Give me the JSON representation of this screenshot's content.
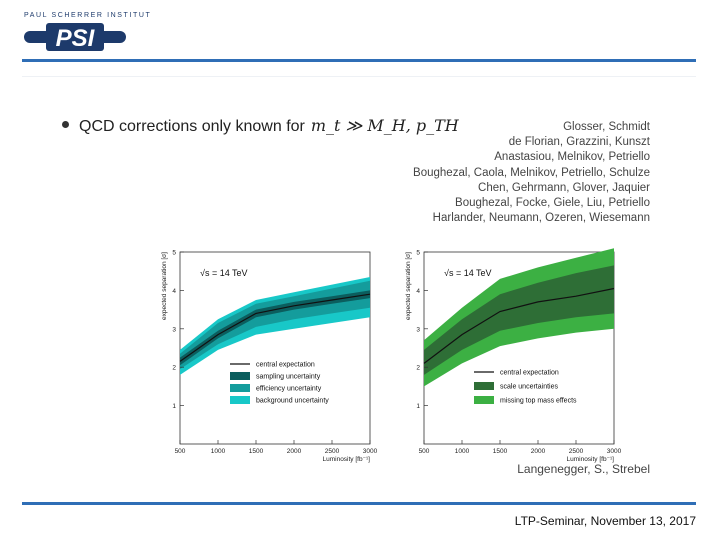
{
  "logo": {
    "institute": "PAUL SCHERRER INSTITUT",
    "mark": "PSI"
  },
  "bullet": {
    "text": "QCD corrections only known for",
    "math": "m_t ≫ M_H, p_TH"
  },
  "references": [
    "Glosser, Schmidt",
    "de Florian, Grazzini, Kunszt",
    "Anastasiou, Melnikov, Petriello",
    "Boughezal, Caola, Melnikov, Petriello, Schulze",
    "Chen, Gehrmann, Glover, Jaquier",
    "Boughezal, Focke, Giele, Liu, Petriello",
    "Harlander, Neumann, Ozeren, Wiesemann"
  ],
  "credit": "Langenegger, S., Strebel",
  "footer": "LTP-Seminar, November 13, 2017",
  "colors": {
    "accent": "#2f6eb6",
    "logo": "#1d3a6b"
  },
  "chart_data": [
    {
      "type": "area",
      "title": "",
      "annotation": "√s = 14 TeV",
      "xlabel": "Luminosity [fb⁻¹]",
      "ylabel": "expected separation [σ]",
      "xlim": [
        500,
        3000
      ],
      "ylim": [
        0,
        5
      ],
      "xticks": [
        500,
        1000,
        1500,
        2000,
        2500,
        3000
      ],
      "yticks": [
        1,
        2,
        3,
        4,
        5
      ],
      "x": [
        500,
        1000,
        1500,
        2000,
        2500,
        3000
      ],
      "legend_position": "bottom-right",
      "series": [
        {
          "name": "background uncertainty",
          "color": "#18c8c8",
          "lower": [
            1.8,
            2.45,
            2.85,
            3.0,
            3.15,
            3.3
          ],
          "upper": [
            2.45,
            3.25,
            3.75,
            3.95,
            4.15,
            4.35
          ]
        },
        {
          "name": "efficiency uncertainty",
          "color": "#149c9c",
          "lower": [
            1.95,
            2.6,
            3.05,
            3.25,
            3.4,
            3.55
          ],
          "upper": [
            2.35,
            3.15,
            3.65,
            3.85,
            4.05,
            4.25
          ]
        },
        {
          "name": "sampling uncertainty",
          "color": "#0b5e5e",
          "lower": [
            2.05,
            2.75,
            3.3,
            3.5,
            3.65,
            3.8
          ],
          "upper": [
            2.25,
            2.95,
            3.5,
            3.7,
            3.85,
            4.0
          ]
        },
        {
          "name": "central expectation",
          "color": "#111111",
          "values": [
            2.15,
            2.85,
            3.4,
            3.6,
            3.75,
            3.9
          ]
        }
      ]
    },
    {
      "type": "area",
      "title": "",
      "annotation": "√s = 14 TeV",
      "xlabel": "Luminosity [fb⁻¹]",
      "ylabel": "expected separation [σ]",
      "xlim": [
        500,
        3000
      ],
      "ylim": [
        0,
        5
      ],
      "xticks": [
        500,
        1000,
        1500,
        2000,
        2500,
        3000
      ],
      "yticks": [
        1,
        2,
        3,
        4,
        5
      ],
      "x": [
        500,
        1000,
        1500,
        2000,
        2500,
        3000
      ],
      "legend_position": "bottom-right",
      "series": [
        {
          "name": "missing top mass effects",
          "color": "#3cb043",
          "lower": [
            1.5,
            2.1,
            2.55,
            2.75,
            2.9,
            3.0
          ],
          "upper": [
            2.7,
            3.55,
            4.3,
            4.6,
            4.85,
            5.1
          ]
        },
        {
          "name": "scale uncertainties",
          "color": "#2e6e36",
          "lower": [
            1.8,
            2.45,
            2.95,
            3.15,
            3.3,
            3.4
          ],
          "upper": [
            2.45,
            3.25,
            3.9,
            4.2,
            4.45,
            4.65
          ]
        },
        {
          "name": "central expectation",
          "color": "#111111",
          "values": [
            2.1,
            2.85,
            3.45,
            3.7,
            3.85,
            4.05
          ]
        }
      ]
    }
  ]
}
